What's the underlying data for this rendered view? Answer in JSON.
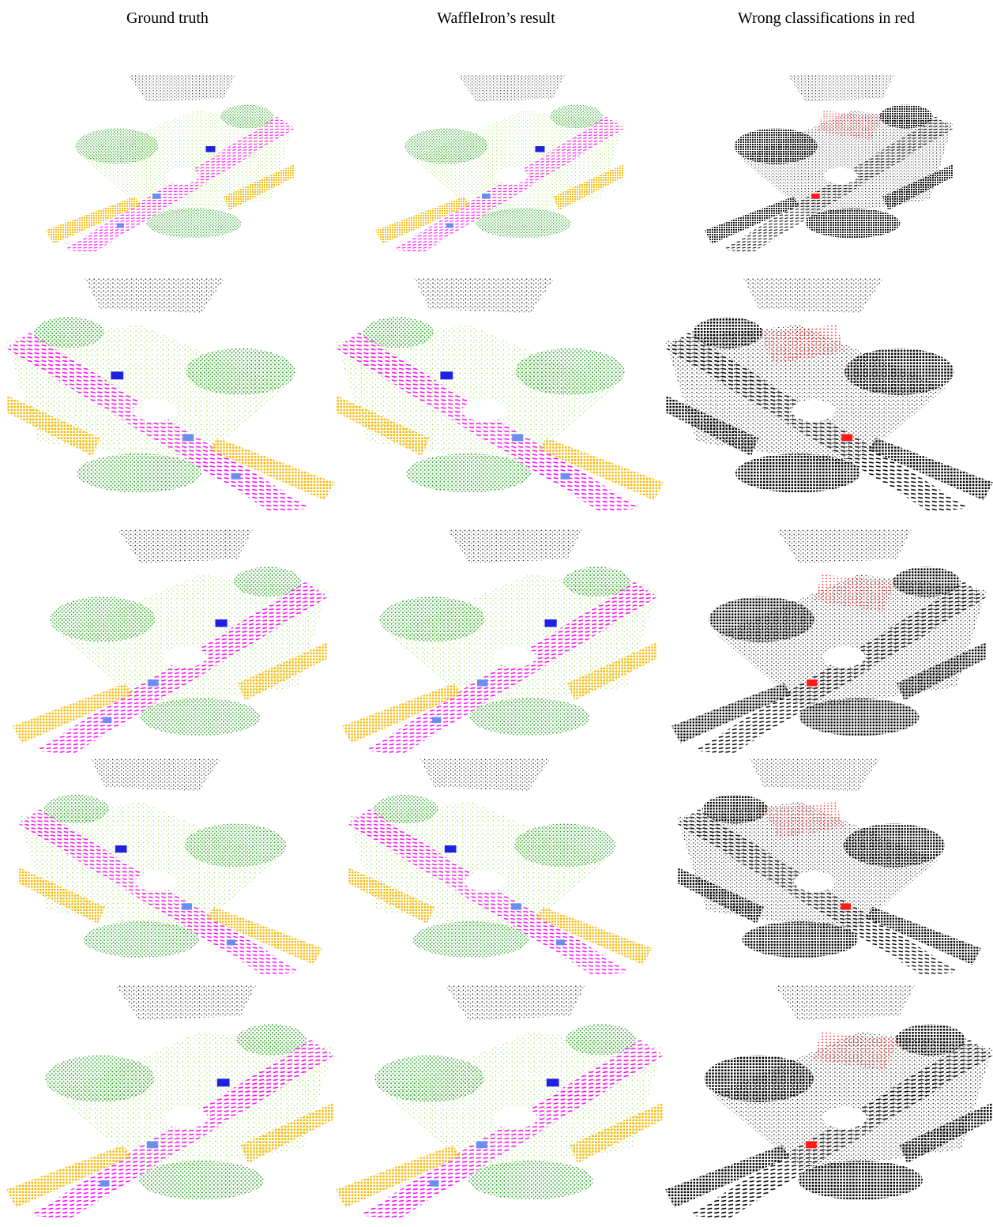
{
  "headers": [
    "Ground truth",
    "WaffleIron’s result",
    "Wrong classifications in red"
  ]
}
